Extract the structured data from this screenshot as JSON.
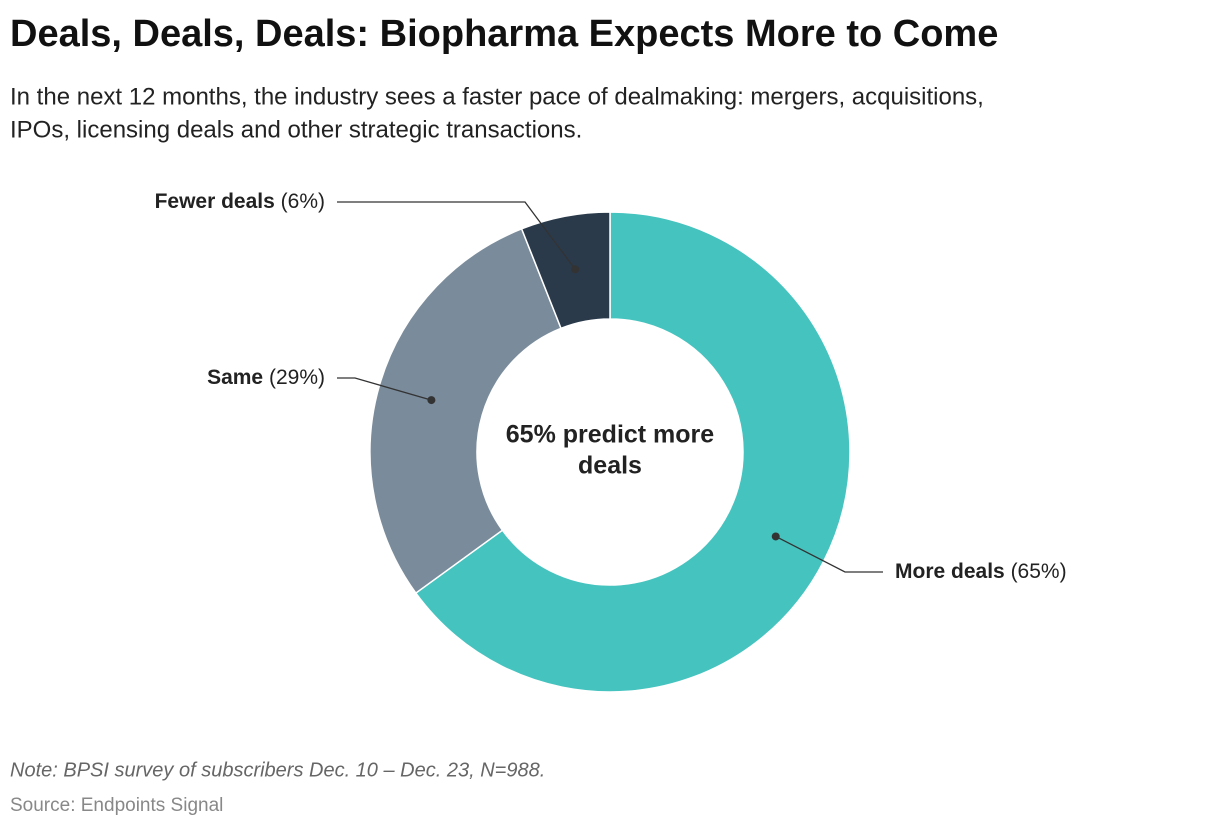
{
  "chart_data": {
    "type": "donut",
    "title": "Deals, Deals, Deals: Biopharma Expects More to Come",
    "subtitle": [
      "In the next 12 months, the industry sees a faster pace of dealmaking: mergers, acquisitions,",
      "IPOs, licensing deals and other strategic transactions."
    ],
    "categories": [
      "More deals",
      "Same",
      "Fewer deals"
    ],
    "values": [
      65,
      29,
      6
    ],
    "value_labels": [
      "(65%)",
      "(29%)",
      "(6%)"
    ],
    "colors": [
      "#45c3bf",
      "#7a8b9b",
      "#2a3a4b"
    ],
    "center_label": [
      "65% predict more",
      "deals"
    ],
    "note": "Note: BPSI survey of subscribers Dec. 10 – Dec. 23, N=988.",
    "source": "Source: Endpoints Signal"
  }
}
